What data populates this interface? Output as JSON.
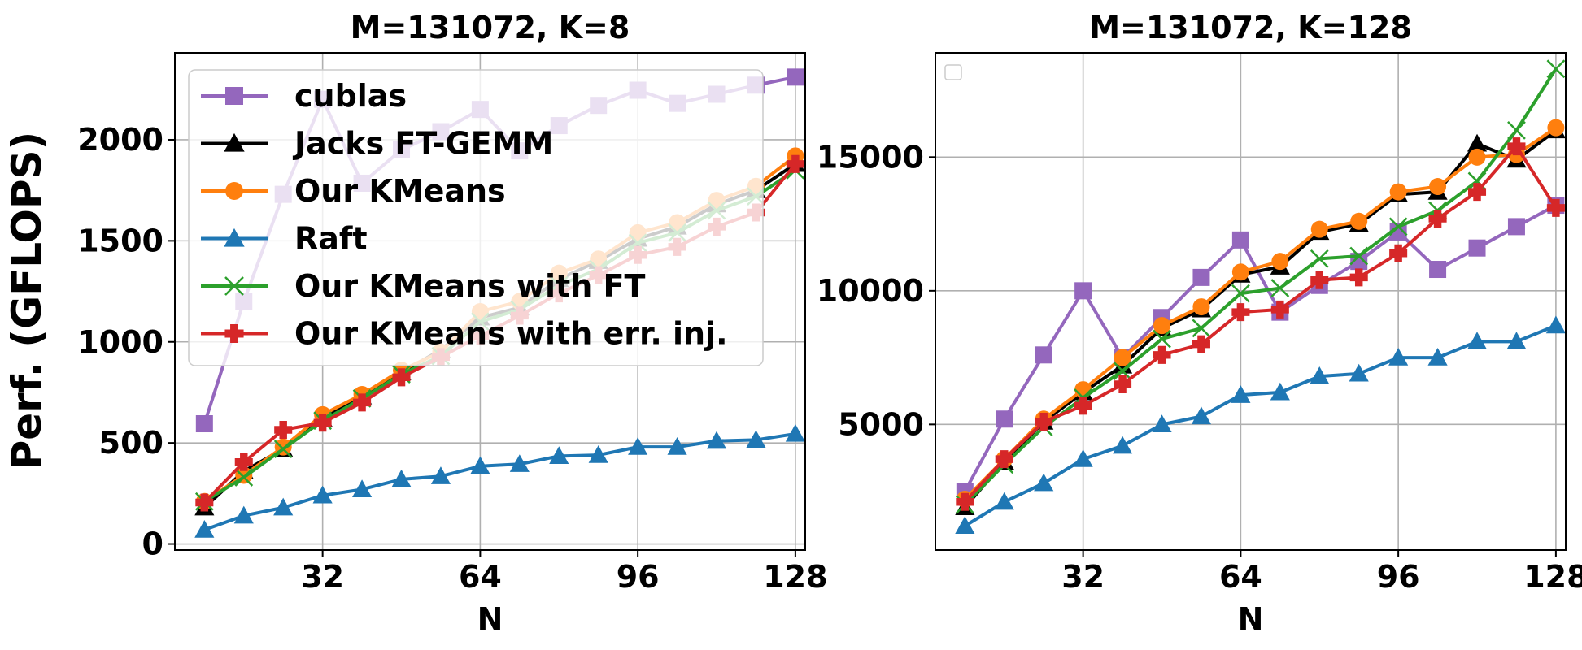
{
  "figure": {
    "ylabel": "Perf. (GFLOPS)"
  },
  "legend_entries": [
    {
      "name": "cublas",
      "color": "#9467bd",
      "marker": "square"
    },
    {
      "name": "Jacks FT-GEMM",
      "color": "#000000",
      "marker": "triangle"
    },
    {
      "name": "Our KMeans",
      "color": "#ff7f0e",
      "marker": "circle"
    },
    {
      "name": "Raft",
      "color": "#1f77b4",
      "marker": "triangle"
    },
    {
      "name": "Our KMeans with FT",
      "color": "#2ca02c",
      "marker": "x"
    },
    {
      "name": "Our KMeans with err. inj.",
      "color": "#d62728",
      "marker": "plus"
    }
  ],
  "chart_data": [
    {
      "type": "line",
      "title": "M=131072, K=8",
      "xlabel": "N",
      "ylabel": "Perf. (GFLOPS)",
      "xlim": [
        2,
        130
      ],
      "ylim": [
        -30,
        2430
      ],
      "xticks": [
        32,
        64,
        96,
        128
      ],
      "yticks": [
        0,
        500,
        1000,
        1500,
        2000
      ],
      "grid": true,
      "legend": "upper-left",
      "x": [
        8,
        16,
        24,
        32,
        40,
        48,
        56,
        64,
        72,
        80,
        88,
        96,
        104,
        112,
        120,
        128
      ],
      "series": [
        {
          "name": "cublas",
          "color": "#9467bd",
          "marker": "square",
          "values": [
            595,
            1200,
            1730,
            2200,
            1785,
            1950,
            2040,
            2150,
            1945,
            2070,
            2170,
            2245,
            2180,
            2225,
            2270,
            2310
          ]
        },
        {
          "name": "Jacks FT-GEMM",
          "color": "#000000",
          "marker": "triangle",
          "values": [
            180,
            360,
            470,
            620,
            730,
            850,
            960,
            1120,
            1170,
            1310,
            1400,
            1510,
            1570,
            1680,
            1750,
            1880
          ]
        },
        {
          "name": "Our KMeans",
          "color": "#ff7f0e",
          "marker": "circle",
          "values": [
            210,
            340,
            480,
            640,
            740,
            860,
            950,
            1150,
            1200,
            1340,
            1410,
            1540,
            1590,
            1700,
            1770,
            1920
          ]
        },
        {
          "name": "Raft",
          "color": "#1f77b4",
          "marker": "triangle",
          "values": [
            70,
            140,
            180,
            240,
            270,
            320,
            335,
            385,
            395,
            435,
            440,
            480,
            480,
            510,
            515,
            545
          ]
        },
        {
          "name": "Our KMeans with FT",
          "color": "#2ca02c",
          "marker": "x",
          "values": [
            210,
            330,
            470,
            610,
            720,
            840,
            930,
            1100,
            1160,
            1280,
            1360,
            1490,
            1540,
            1650,
            1720,
            1850
          ]
        },
        {
          "name": "Our KMeans with err. inj.",
          "color": "#d62728",
          "marker": "plus",
          "values": [
            205,
            405,
            565,
            600,
            700,
            825,
            925,
            1030,
            1130,
            1240,
            1330,
            1430,
            1470,
            1570,
            1640,
            1880
          ]
        }
      ]
    },
    {
      "type": "line",
      "title": "M=131072, K=128",
      "xlabel": "N",
      "ylabel": "",
      "xlim": [
        2,
        130
      ],
      "ylim": [
        300,
        18900
      ],
      "xticks": [
        32,
        64,
        96,
        128
      ],
      "yticks": [
        5000,
        10000,
        15000
      ],
      "grid": true,
      "legend": "upper-left (empty box)",
      "x": [
        8,
        16,
        24,
        32,
        40,
        48,
        56,
        64,
        72,
        80,
        88,
        96,
        104,
        112,
        120,
        128
      ],
      "series": [
        {
          "name": "cublas",
          "color": "#9467bd",
          "marker": "square",
          "values": [
            2500,
            5200,
            7600,
            10000,
            7500,
            9000,
            10500,
            11900,
            9200,
            10200,
            11100,
            12200,
            10800,
            11600,
            12400,
            13200
          ]
        },
        {
          "name": "Jacks FT-GEMM",
          "color": "#000000",
          "marker": "triangle",
          "values": [
            1900,
            3600,
            5100,
            6200,
            7200,
            8600,
            9300,
            10600,
            10900,
            12200,
            12500,
            13600,
            13700,
            15500,
            14900,
            16000
          ]
        },
        {
          "name": "Our KMeans",
          "color": "#ff7f0e",
          "marker": "circle",
          "values": [
            2200,
            3700,
            5200,
            6300,
            7500,
            8700,
            9400,
            10700,
            11100,
            12300,
            12600,
            13700,
            13900,
            15000,
            15100,
            16100
          ]
        },
        {
          "name": "Raft",
          "color": "#1f77b4",
          "marker": "triangle",
          "values": [
            1200,
            2100,
            2800,
            3700,
            4200,
            5000,
            5300,
            6100,
            6200,
            6800,
            6900,
            7500,
            7500,
            8100,
            8100,
            8700
          ]
        },
        {
          "name": "Our KMeans with FT",
          "color": "#2ca02c",
          "marker": "x",
          "values": [
            2000,
            3500,
            4900,
            6000,
            7000,
            8200,
            8600,
            9900,
            10100,
            11200,
            11300,
            12400,
            13000,
            14100,
            16000,
            18300
          ]
        },
        {
          "name": "Our KMeans with err. inj.",
          "color": "#d62728",
          "marker": "plus",
          "values": [
            2100,
            3700,
            5100,
            5700,
            6500,
            7600,
            8000,
            9200,
            9300,
            10400,
            10500,
            11400,
            12700,
            13700,
            15400,
            13100
          ]
        }
      ]
    }
  ]
}
